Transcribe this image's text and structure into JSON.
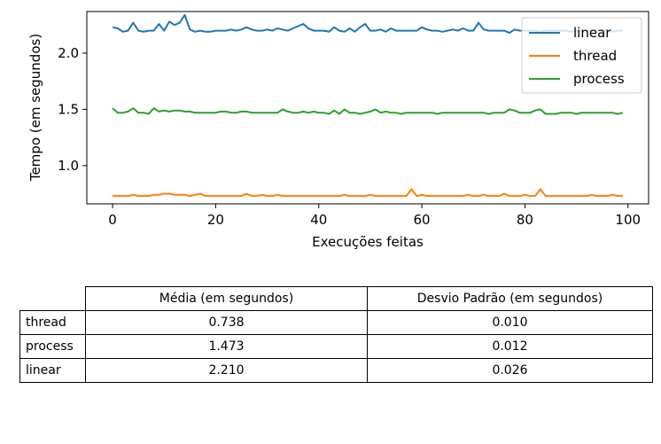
{
  "chart_data": {
    "type": "line",
    "title": "",
    "xlabel": "Execuções feitas",
    "ylabel": "Tempo (em segundos)",
    "xlim": [
      -5,
      104
    ],
    "ylim": [
      0.66,
      2.37
    ],
    "xticks": [
      0,
      20,
      40,
      60,
      80,
      100
    ],
    "yticks": [
      1.0,
      1.5,
      2.0
    ],
    "grid": false,
    "legend_position": "top-right",
    "x": [
      0,
      1,
      2,
      3,
      4,
      5,
      6,
      7,
      8,
      9,
      10,
      11,
      12,
      13,
      14,
      15,
      16,
      17,
      18,
      19,
      20,
      21,
      22,
      23,
      24,
      25,
      26,
      27,
      28,
      29,
      30,
      31,
      32,
      33,
      34,
      35,
      36,
      37,
      38,
      39,
      40,
      41,
      42,
      43,
      44,
      45,
      46,
      47,
      48,
      49,
      50,
      51,
      52,
      53,
      54,
      55,
      56,
      57,
      58,
      59,
      60,
      61,
      62,
      63,
      64,
      65,
      66,
      67,
      68,
      69,
      70,
      71,
      72,
      73,
      74,
      75,
      76,
      77,
      78,
      79,
      80,
      81,
      82,
      83,
      84,
      85,
      86,
      87,
      88,
      89,
      90,
      91,
      92,
      93,
      94,
      95,
      96,
      97,
      98,
      99
    ],
    "series": [
      {
        "name": "linear",
        "color": "#1f77b4",
        "values": [
          2.23,
          2.22,
          2.19,
          2.2,
          2.27,
          2.2,
          2.19,
          2.2,
          2.2,
          2.26,
          2.2,
          2.28,
          2.25,
          2.27,
          2.34,
          2.21,
          2.19,
          2.2,
          2.19,
          2.19,
          2.2,
          2.2,
          2.2,
          2.21,
          2.2,
          2.21,
          2.23,
          2.21,
          2.2,
          2.2,
          2.21,
          2.2,
          2.22,
          2.21,
          2.2,
          2.22,
          2.24,
          2.26,
          2.22,
          2.2,
          2.2,
          2.2,
          2.19,
          2.23,
          2.2,
          2.19,
          2.22,
          2.19,
          2.23,
          2.26,
          2.2,
          2.2,
          2.21,
          2.19,
          2.22,
          2.2,
          2.2,
          2.2,
          2.2,
          2.2,
          2.23,
          2.21,
          2.2,
          2.2,
          2.19,
          2.2,
          2.21,
          2.2,
          2.22,
          2.2,
          2.2,
          2.27,
          2.21,
          2.2,
          2.2,
          2.2,
          2.2,
          2.18,
          2.21,
          2.2,
          2.2,
          2.2,
          2.2,
          2.19,
          2.2,
          2.2,
          2.2,
          2.2,
          2.2,
          2.19,
          2.2,
          2.2,
          2.2,
          2.2,
          2.2,
          2.2,
          2.2,
          2.19,
          2.2,
          2.2
        ]
      },
      {
        "name": "thread",
        "color": "#ff7f0e",
        "values": [
          0.73,
          0.73,
          0.73,
          0.73,
          0.74,
          0.73,
          0.73,
          0.73,
          0.74,
          0.74,
          0.75,
          0.75,
          0.74,
          0.74,
          0.74,
          0.73,
          0.74,
          0.75,
          0.73,
          0.73,
          0.73,
          0.73,
          0.73,
          0.73,
          0.73,
          0.73,
          0.75,
          0.73,
          0.73,
          0.74,
          0.73,
          0.73,
          0.74,
          0.73,
          0.73,
          0.73,
          0.73,
          0.73,
          0.73,
          0.73,
          0.73,
          0.73,
          0.73,
          0.73,
          0.73,
          0.74,
          0.73,
          0.73,
          0.73,
          0.73,
          0.74,
          0.73,
          0.73,
          0.73,
          0.73,
          0.73,
          0.73,
          0.73,
          0.79,
          0.73,
          0.74,
          0.73,
          0.73,
          0.73,
          0.73,
          0.73,
          0.73,
          0.73,
          0.73,
          0.74,
          0.73,
          0.73,
          0.74,
          0.73,
          0.73,
          0.73,
          0.75,
          0.73,
          0.73,
          0.73,
          0.74,
          0.73,
          0.73,
          0.79,
          0.73,
          0.73,
          0.73,
          0.73,
          0.73,
          0.73,
          0.73,
          0.73,
          0.73,
          0.74,
          0.73,
          0.73,
          0.73,
          0.74,
          0.73,
          0.73
        ]
      },
      {
        "name": "process",
        "color": "#2ca02c",
        "values": [
          1.51,
          1.47,
          1.47,
          1.48,
          1.51,
          1.47,
          1.47,
          1.46,
          1.51,
          1.48,
          1.49,
          1.48,
          1.49,
          1.49,
          1.48,
          1.48,
          1.47,
          1.47,
          1.47,
          1.47,
          1.47,
          1.48,
          1.48,
          1.47,
          1.47,
          1.48,
          1.48,
          1.47,
          1.47,
          1.47,
          1.47,
          1.47,
          1.47,
          1.5,
          1.48,
          1.47,
          1.47,
          1.48,
          1.47,
          1.48,
          1.47,
          1.47,
          1.46,
          1.49,
          1.46,
          1.5,
          1.47,
          1.47,
          1.46,
          1.47,
          1.48,
          1.5,
          1.47,
          1.48,
          1.47,
          1.47,
          1.46,
          1.47,
          1.47,
          1.47,
          1.47,
          1.47,
          1.47,
          1.46,
          1.47,
          1.47,
          1.47,
          1.47,
          1.47,
          1.47,
          1.47,
          1.47,
          1.47,
          1.46,
          1.47,
          1.47,
          1.47,
          1.5,
          1.49,
          1.47,
          1.47,
          1.47,
          1.49,
          1.5,
          1.46,
          1.46,
          1.46,
          1.47,
          1.47,
          1.47,
          1.46,
          1.47,
          1.47,
          1.47,
          1.47,
          1.47,
          1.47,
          1.47,
          1.46,
          1.47
        ]
      }
    ]
  },
  "table": {
    "headers": [
      "Média (em segundos)",
      "Desvio Padrão (em segundos)"
    ],
    "rows": [
      {
        "label": "thread",
        "mean": "0.738",
        "std": "0.010"
      },
      {
        "label": "process",
        "mean": "1.473",
        "std": "0.012"
      },
      {
        "label": "linear",
        "mean": "2.210",
        "std": "0.026"
      }
    ]
  }
}
